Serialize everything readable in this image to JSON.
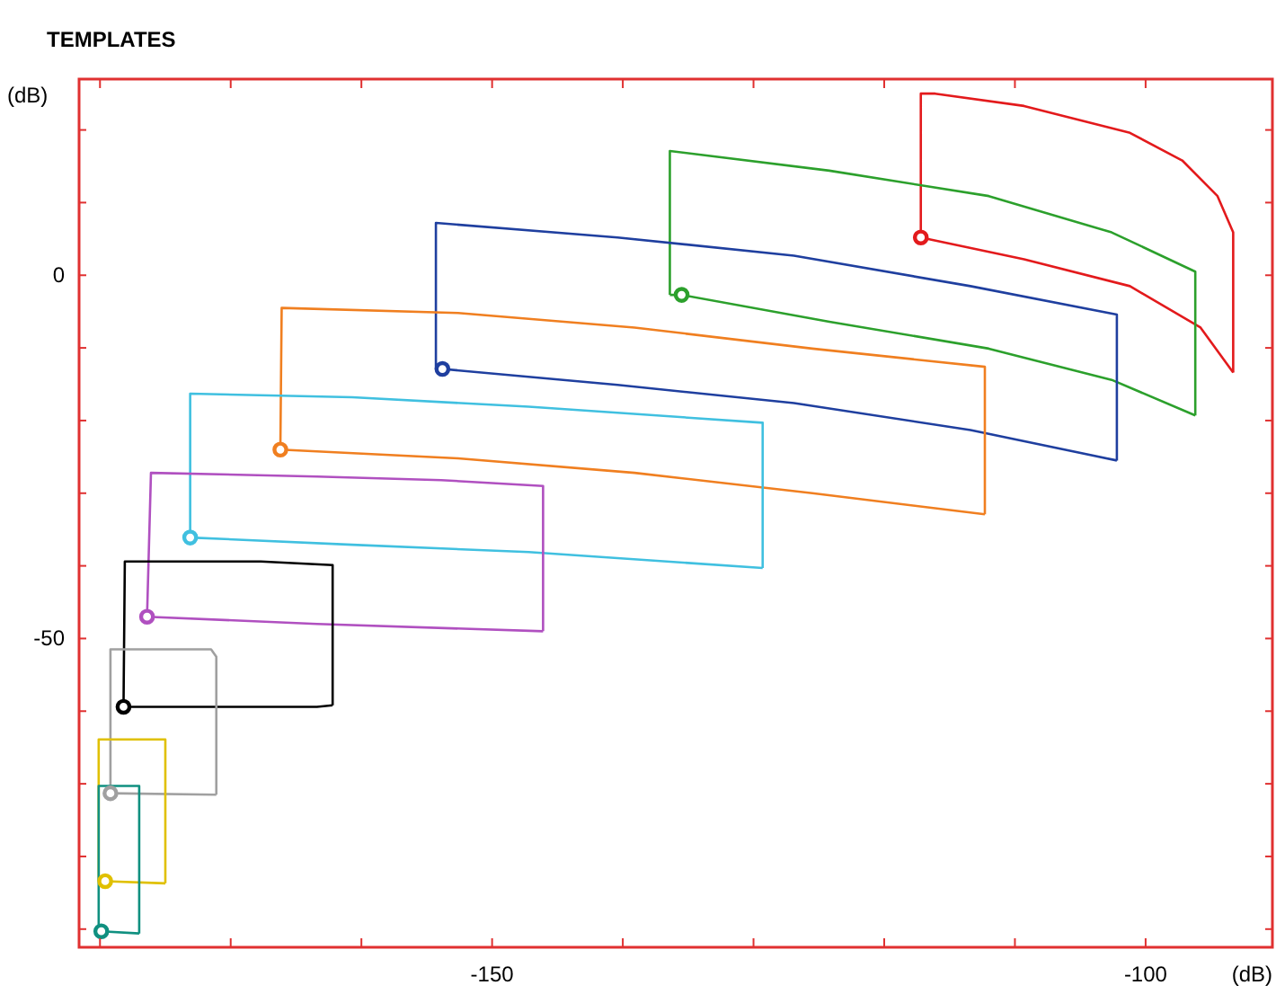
{
  "chart_data": {
    "type": "line",
    "title": "TEMPLATES",
    "xlabel": "(dB)",
    "ylabel": "(dB)",
    "xlim": [
      -181.6,
      -90.3
    ],
    "ylim": [
      -92.5,
      27
    ],
    "xticks": [
      {
        "value": -180,
        "label": null
      },
      {
        "value": -170,
        "label": null
      },
      {
        "value": -160,
        "label": null
      },
      -150,
      {
        "value": -140,
        "label": null
      },
      {
        "value": -130,
        "label": null
      },
      {
        "value": -120,
        "label": null
      },
      {
        "value": -110,
        "label": null
      },
      -100
    ],
    "yticks": [
      {
        "value": 20,
        "label": null
      },
      {
        "value": 10,
        "label": null
      },
      0,
      {
        "value": -10,
        "label": null
      },
      {
        "value": -20,
        "label": null
      },
      {
        "value": -30,
        "label": null
      },
      {
        "value": -40,
        "label": null
      },
      -50,
      {
        "value": -60,
        "label": null
      },
      {
        "value": -70,
        "label": null
      },
      {
        "value": -80,
        "label": null
      },
      {
        "value": -90,
        "label": null
      }
    ],
    "grid": false,
    "series": [
      {
        "color": "#e31a1c",
        "x": [
          -117.2,
          -117.2,
          -116.1,
          -109.3,
          -101.2,
          -97.2,
          -94.5,
          -93.3,
          -93.3,
          -93.3
        ],
        "values": [
          5.2,
          25,
          25,
          23.3,
          19.6,
          15.8,
          10.9,
          5.9,
          -6.4,
          -13.4
        ]
      },
      {
        "color": "#e31a1c",
        "x": [
          -117.2,
          -109.3,
          -101.2,
          -95.8,
          -93.3
        ],
        "values": [
          5.2,
          2.2,
          -1.5,
          -7.2,
          -13.4
        ]
      },
      {
        "color": "#2ca02c",
        "x": [
          -136.4,
          -136.4,
          -124.2,
          -112,
          -102.6,
          -96.2,
          -96.2
        ],
        "values": [
          -2.7,
          17.1,
          14.4,
          10.9,
          5.9,
          0.5,
          -19.3
        ]
      },
      {
        "color": "#2ca02c",
        "x": [
          -136.4,
          -135.5,
          -124.2,
          -112,
          -102.6,
          -96.2
        ],
        "values": [
          -2.7,
          -2.7,
          -6.4,
          -10.1,
          -14.4,
          -19.3
        ]
      },
      {
        "color": "#1f3f9f",
        "x": [
          -154.3,
          -154.3,
          -140.4,
          -126.9,
          -113.4,
          -102.2,
          -102.2
        ],
        "values": [
          -12.9,
          7.2,
          5.2,
          2.7,
          -1.5,
          -5.4,
          -25.5
        ]
      },
      {
        "color": "#1f3f9f",
        "x": [
          -154.3,
          -153.8,
          -140.4,
          -126.9,
          -113.4,
          -102.2
        ],
        "values": [
          -12.9,
          -12.9,
          -15.1,
          -17.6,
          -21.3,
          -25.5
        ]
      },
      {
        "color": "#f07f20",
        "x": [
          -166.2,
          -166.1,
          -152.6,
          -139.1,
          -125.5,
          -112.3,
          -112.3
        ],
        "values": [
          -24,
          -4.5,
          -5.2,
          -7.2,
          -10.1,
          -12.6,
          -32.9
        ]
      },
      {
        "color": "#f07f20",
        "x": [
          -166.2,
          -152.6,
          -139.1,
          -125.5,
          -112.3
        ],
        "values": [
          -24,
          -25.2,
          -27.2,
          -30,
          -32.9
        ]
      },
      {
        "color": "#40c0e0",
        "x": [
          -173.1,
          -173.1,
          -160.7,
          -147.2,
          -129.3,
          -129.3
        ],
        "values": [
          -36.1,
          -16.3,
          -16.8,
          -18.1,
          -20.3,
          -40.3
        ]
      },
      {
        "color": "#40c0e0",
        "x": [
          -173.1,
          -160.7,
          -147.2,
          -129.3
        ],
        "values": [
          -36.1,
          -37.1,
          -38.1,
          -40.3
        ]
      },
      {
        "color": "#b050c0",
        "x": [
          -176.4,
          -176.1,
          -163.4,
          -153.9,
          -146.1,
          -146.1
        ],
        "values": [
          -47,
          -27.2,
          -27.7,
          -28.2,
          -29,
          -49
        ]
      },
      {
        "color": "#b050c0",
        "x": [
          -176.4,
          -163.4,
          -146.1
        ],
        "values": [
          -47,
          -48,
          -49
        ]
      },
      {
        "color": "#000000",
        "x": [
          -178.2,
          -178.1,
          -167.7,
          -162.2,
          -162.2
        ],
        "values": [
          -59.4,
          -39.4,
          -39.4,
          -39.9,
          -59.2
        ]
      },
      {
        "color": "#000000",
        "x": [
          -178.2,
          -163.4,
          -162.2
        ],
        "values": [
          -59.4,
          -59.4,
          -59.2
        ]
      },
      {
        "color": "#a0a0a0",
        "x": [
          -179.2,
          -179.2,
          -171.5,
          -171.1,
          -171.1
        ],
        "values": [
          -71.3,
          -51.5,
          -51.5,
          -52.5,
          -71.5
        ]
      },
      {
        "color": "#a0a0a0",
        "x": [
          -179.2,
          -171.1
        ],
        "values": [
          -71.3,
          -71.5
        ]
      },
      {
        "color": "#e0c000",
        "x": [
          -180.1,
          -180.1,
          -175,
          -175
        ],
        "values": [
          -83.4,
          -63.9,
          -63.9,
          -83.7
        ]
      },
      {
        "color": "#e0c000",
        "x": [
          -180.1,
          -179.6,
          -175
        ],
        "values": [
          -83.4,
          -83.4,
          -83.7
        ]
      },
      {
        "color": "#109080",
        "x": [
          -180.1,
          -180.1,
          -177,
          -177
        ],
        "values": [
          -90.3,
          -70.3,
          -70.3,
          -90.6
        ]
      },
      {
        "color": "#109080",
        "x": [
          -180.1,
          -179.9,
          -177
        ],
        "values": [
          -90.3,
          -90.3,
          -90.6
        ]
      },
      {
        "type": "scatter",
        "marker": "circle",
        "x": [
          -117.2,
          -135.5,
          -153.8,
          -166.2,
          -173.1,
          -176.4,
          -178.2,
          -179.2,
          -179.6,
          -179.9
        ],
        "values": [
          5.2,
          -2.7,
          -12.9,
          -24,
          -36.1,
          -47,
          -59.4,
          -71.3,
          -83.4,
          -90.3
        ],
        "colors": [
          "#e31a1c",
          "#2ca02c",
          "#1f3f9f",
          "#f07f20",
          "#40c0e0",
          "#b050c0",
          "#000000",
          "#a0a0a0",
          "#e0c000",
          "#109080"
        ]
      }
    ]
  }
}
